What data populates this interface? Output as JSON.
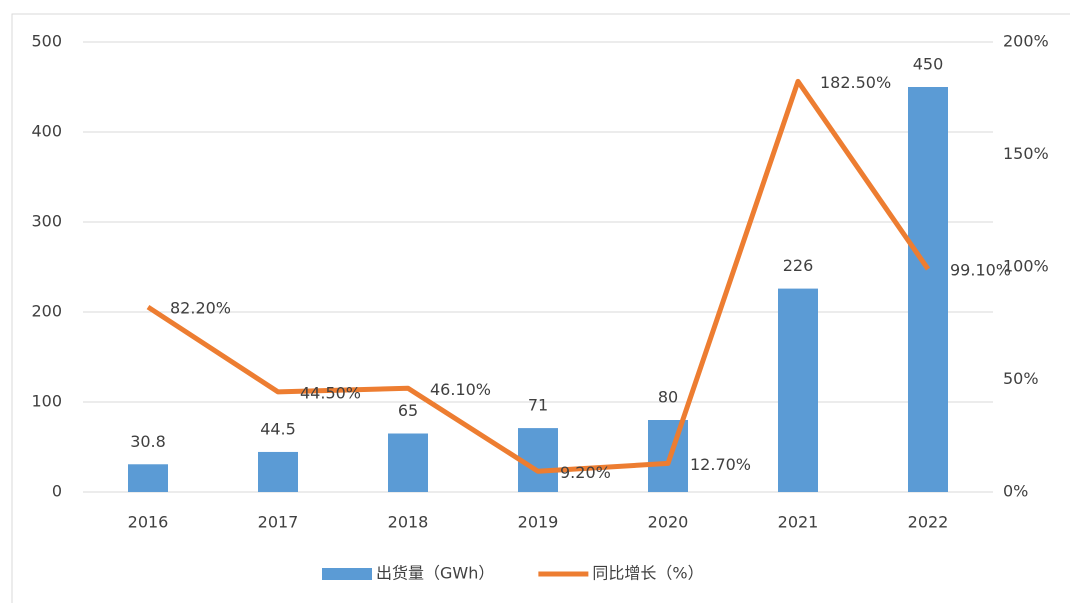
{
  "chart_data": {
    "type": "bar",
    "categories": [
      "2016",
      "2017",
      "2018",
      "2019",
      "2020",
      "2021",
      "2022"
    ],
    "series": [
      {
        "name": "出货量（GWh）",
        "type": "bar",
        "color": "#5b9bd5",
        "values": [
          30.8,
          44.5,
          65,
          71,
          80,
          226,
          450
        ]
      },
      {
        "name": "同比增长（%）",
        "type": "line",
        "axis": "y2",
        "color": "#ed7d31",
        "values": [
          82.2,
          44.5,
          46.1,
          9.2,
          12.7,
          182.5,
          99.1
        ],
        "value_labels": [
          "82.20%",
          "44.50%",
          "46.10%",
          "9.20%",
          "12.70%",
          "182.50%",
          "99.10%"
        ]
      }
    ],
    "ylim": [
      0,
      500
    ],
    "yticks": [
      0,
      100,
      200,
      300,
      400,
      500
    ],
    "y2lim": [
      0,
      200
    ],
    "y2ticks": [
      {
        "value": 0,
        "label": "0%"
      },
      {
        "value": 50,
        "label": "50%"
      },
      {
        "value": 100,
        "label": "100%"
      },
      {
        "value": 150,
        "label": "150%"
      },
      {
        "value": 200,
        "label": "200%"
      }
    ],
    "grid": true,
    "legend": "bottom"
  }
}
